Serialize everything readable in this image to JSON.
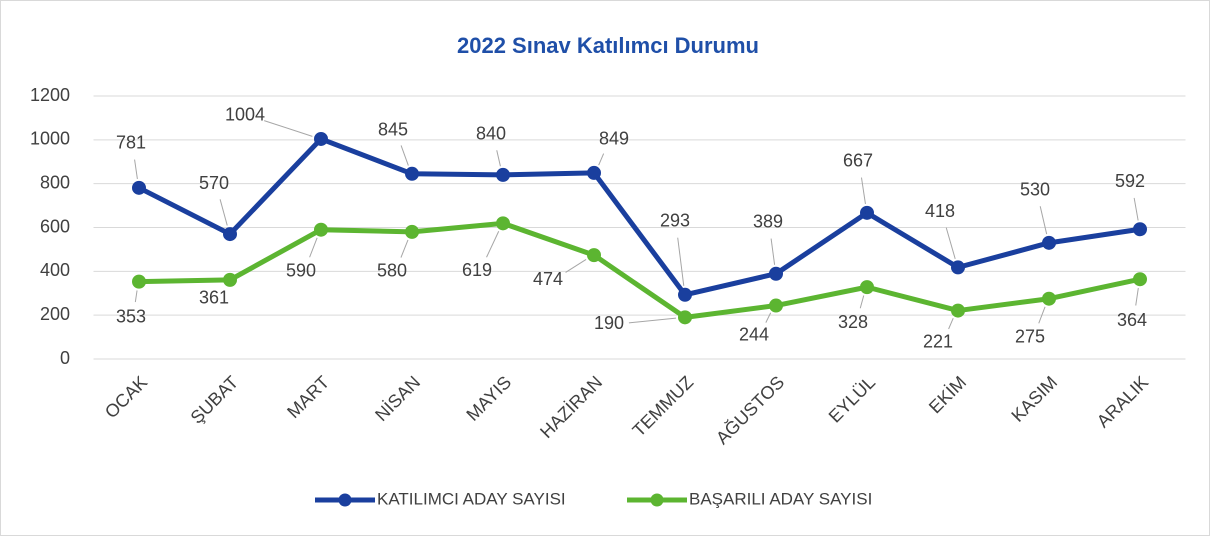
{
  "chart_data": {
    "type": "line",
    "title": "2022 Sınav Katılımcı Durumu",
    "categories": [
      "OCAK",
      "ŞUBAT",
      "MART",
      "NİSAN",
      "MAYIS",
      "HAZİRAN",
      "TEMMUZ",
      "AĞUSTOS",
      "EYLÜL",
      "EKİM",
      "KASIM",
      "ARALIK"
    ],
    "series": [
      {
        "name": "KATILIMCI ADAY SAYISI",
        "color": "#1a3f9e",
        "values": [
          781,
          570,
          1004,
          845,
          840,
          849,
          293,
          389,
          667,
          418,
          530,
          592
        ]
      },
      {
        "name": "BAŞARILI ADAY SAYISI",
        "color": "#5cb531",
        "values": [
          353,
          361,
          590,
          580,
          619,
          474,
          190,
          244,
          328,
          221,
          275,
          364
        ]
      }
    ],
    "ylim": [
      0,
      1200
    ],
    "yticks": [
      0,
      200,
      400,
      600,
      800,
      1000,
      1200
    ],
    "grid": true,
    "legend": "bottom"
  }
}
